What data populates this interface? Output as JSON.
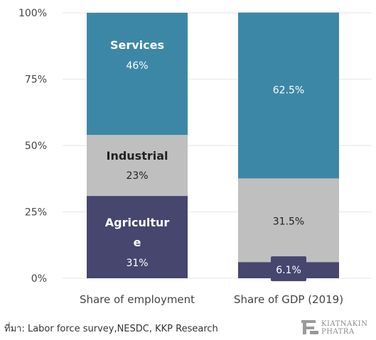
{
  "chart_data": {
    "type": "bar",
    "stacked": true,
    "percent_stacked": true,
    "categories": [
      "Share of employment",
      "Share of GDP (2019)"
    ],
    "series": [
      {
        "name": "Agricultur e",
        "values": [
          31,
          6.1
        ],
        "color": "#46466e",
        "data_labels": [
          "31%",
          "6.1%"
        ]
      },
      {
        "name": "Industrial",
        "values": [
          23,
          31.5
        ],
        "color": "#bfbfbf",
        "data_labels": [
          "23%",
          "31.5%"
        ]
      },
      {
        "name": "Services",
        "values": [
          46,
          62.5
        ],
        "color": "#3d87a6",
        "data_labels": [
          "46%",
          "62.5%"
        ]
      }
    ],
    "yticks": [
      "0%",
      "25%",
      "50%",
      "75%",
      "100%"
    ],
    "ylim": [
      0,
      100
    ],
    "grid": true,
    "legend": "none"
  },
  "footer": {
    "source": "ที่มา: Labor force survey,NESDC, KKP Research",
    "logo_line1": "KIATNAKIN",
    "logo_line2": "PHATRA",
    "logo_icon": "kiatnakin-phatra-logo-icon"
  }
}
